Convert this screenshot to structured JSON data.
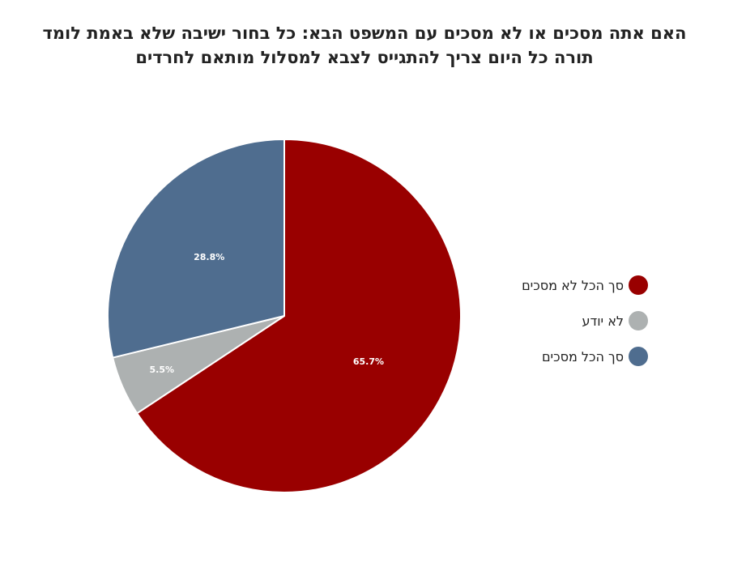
{
  "chart_data": {
    "type": "pie",
    "title_lines": [
      "האם אתה מסכים או לא מסכים עם המשפט הבא: כל בחור ישיבה שלא באמת לומד",
      "תורה כל היום צריך להתגייס לצבא למסלול מותאם לחרדים"
    ],
    "slices": [
      {
        "label": "סך הכל לא מסכים",
        "value": 65.7,
        "display": "65.7%",
        "color": "#990000"
      },
      {
        "label": "לא יודע",
        "value": 5.5,
        "display": "5.5%",
        "color": "#adb1b1"
      },
      {
        "label": "סך הכל מסכים",
        "value": 28.8,
        "display": "28.8%",
        "color": "#4f6d8f"
      }
    ],
    "legend_position": "right"
  }
}
